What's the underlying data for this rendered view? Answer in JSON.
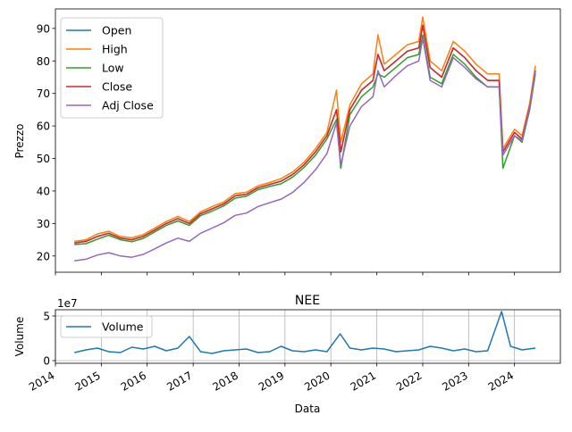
{
  "colors": {
    "Open": "#1f77b4",
    "High": "#ff7f0e",
    "Low": "#2ca02c",
    "Close": "#d62728",
    "Adj Close": "#9467bd",
    "Volume": "#1f77b4"
  },
  "chart_data": [
    {
      "type": "line",
      "title": "",
      "xlabel": "",
      "ylabel": "Prezzo",
      "xlim": [
        "2014-01-01",
        "2024-12-31"
      ],
      "ylim": [
        15,
        96
      ],
      "yticks": [
        20,
        30,
        40,
        50,
        60,
        70,
        80,
        90
      ],
      "grid": false,
      "legend_position": "top-left",
      "x": [
        "2014-06-01",
        "2014-09-01",
        "2014-12-01",
        "2015-03-01",
        "2015-06-01",
        "2015-09-01",
        "2015-12-01",
        "2016-03-01",
        "2016-06-01",
        "2016-09-01",
        "2016-12-01",
        "2017-03-01",
        "2017-06-01",
        "2017-09-01",
        "2017-12-01",
        "2018-03-01",
        "2018-06-01",
        "2018-09-01",
        "2018-12-01",
        "2019-03-01",
        "2019-06-01",
        "2019-09-01",
        "2019-12-01",
        "2020-02-15",
        "2020-03-20",
        "2020-06-01",
        "2020-09-01",
        "2020-12-01",
        "2021-01-10",
        "2021-03-01",
        "2021-06-01",
        "2021-09-01",
        "2021-12-01",
        "2022-01-01",
        "2022-03-01",
        "2022-06-01",
        "2022-09-01",
        "2022-12-01",
        "2023-03-01",
        "2023-06-01",
        "2023-09-01",
        "2023-10-01",
        "2024-01-01",
        "2024-03-01",
        "2024-05-01",
        "2024-06-15"
      ],
      "series": [
        {
          "name": "Open",
          "values": [
            24,
            24.5,
            26,
            27,
            25.5,
            25,
            26,
            28,
            30,
            31.5,
            30,
            33,
            34.5,
            36,
            38.5,
            39,
            41,
            42,
            43,
            45,
            48,
            52,
            57,
            65,
            52,
            65,
            71,
            74,
            82,
            77,
            80,
            83,
            84,
            91,
            78,
            75,
            84,
            81,
            77,
            74,
            74,
            52,
            58,
            56,
            66,
            77
          ]
        },
        {
          "name": "High",
          "values": [
            24.5,
            25,
            26.8,
            27.6,
            26,
            25.6,
            26.6,
            28.6,
            30.6,
            32.2,
            30.6,
            33.6,
            35.2,
            36.6,
            39.2,
            39.6,
            41.6,
            42.6,
            43.8,
            45.8,
            48.8,
            53,
            58,
            71,
            55,
            66.5,
            73,
            76,
            88,
            79,
            82,
            85,
            86,
            93.5,
            80,
            77,
            86,
            83,
            79,
            76,
            76,
            53,
            59,
            57,
            67,
            78.5
          ]
        },
        {
          "name": "Low",
          "values": [
            23.5,
            23.8,
            25.2,
            26.4,
            25,
            24.4,
            25.4,
            27.4,
            29.4,
            30.8,
            29.4,
            32.4,
            33.8,
            35.4,
            37.8,
            38.4,
            40.4,
            41.4,
            42.2,
            44.2,
            47.2,
            51,
            56,
            62,
            47,
            63.5,
            69,
            72,
            76,
            75,
            78,
            81,
            82,
            88,
            75,
            73,
            82,
            79,
            75,
            72,
            72,
            47,
            57,
            55,
            65,
            76
          ]
        },
        {
          "name": "Close",
          "values": [
            24,
            24.5,
            26,
            27,
            25.5,
            25,
            26,
            28,
            30,
            31.5,
            30,
            33,
            34.5,
            36,
            38.5,
            39,
            41,
            42,
            43,
            45,
            48,
            52,
            57,
            65,
            52,
            65,
            71,
            74,
            82,
            77,
            80,
            83,
            84,
            91,
            78,
            75,
            84,
            81,
            77,
            74,
            74,
            52,
            58,
            56,
            66,
            77
          ]
        },
        {
          "name": "Adj Close",
          "values": [
            18.5,
            19,
            20.3,
            21,
            20,
            19.6,
            20.5,
            22.2,
            24,
            25.5,
            24.5,
            27,
            28.6,
            30.2,
            32.5,
            33.2,
            35.2,
            36.4,
            37.5,
            39.5,
            42.6,
            46.5,
            51.5,
            61,
            48,
            60,
            66,
            69,
            77,
            72,
            75.5,
            78.5,
            80,
            87,
            74,
            72,
            81,
            78,
            74.5,
            72,
            72,
            51,
            57,
            55.5,
            65.5,
            77
          ]
        }
      ]
    },
    {
      "type": "line",
      "title": "NEE",
      "xlabel": "Data",
      "ylabel": "Volume",
      "y_scale_label": "1e7",
      "ylim": [
        -0.3,
        5.7
      ],
      "yticks": [
        0,
        5
      ],
      "yticks_unit": "1e7",
      "grid": true,
      "legend_position": "top-left",
      "xtick_labels": [
        "2014",
        "2015",
        "2016",
        "2017",
        "2018",
        "2019",
        "2020",
        "2021",
        "2022",
        "2023",
        "2024"
      ],
      "xtick_dates": [
        "2014-01-01",
        "2015-01-01",
        "2016-01-01",
        "2017-01-01",
        "2018-01-01",
        "2019-01-01",
        "2020-01-01",
        "2021-01-01",
        "2022-01-01",
        "2023-01-01",
        "2024-01-01"
      ],
      "x": [
        "2014-06-01",
        "2014-09-01",
        "2014-12-01",
        "2015-03-01",
        "2015-06-01",
        "2015-09-01",
        "2015-12-01",
        "2016-03-01",
        "2016-06-01",
        "2016-09-01",
        "2016-12-01",
        "2017-03-01",
        "2017-06-01",
        "2017-09-01",
        "2017-12-01",
        "2018-03-01",
        "2018-06-01",
        "2018-09-01",
        "2018-12-01",
        "2019-03-01",
        "2019-06-01",
        "2019-09-01",
        "2019-12-01",
        "2020-03-15",
        "2020-06-01",
        "2020-09-01",
        "2020-12-01",
        "2021-03-01",
        "2021-06-01",
        "2021-09-01",
        "2021-12-01",
        "2022-03-01",
        "2022-06-01",
        "2022-09-01",
        "2022-12-01",
        "2023-03-01",
        "2023-06-01",
        "2023-09-20",
        "2023-12-01",
        "2024-03-01",
        "2024-06-15"
      ],
      "series": [
        {
          "name": "Volume",
          "values": [
            0.9,
            1.2,
            1.4,
            1.0,
            0.9,
            1.5,
            1.3,
            1.6,
            1.1,
            1.4,
            2.7,
            1.0,
            0.8,
            1.1,
            1.2,
            1.3,
            0.9,
            1.0,
            1.6,
            1.1,
            1.0,
            1.2,
            1.0,
            3.0,
            1.4,
            1.2,
            1.4,
            1.3,
            1.0,
            1.1,
            1.2,
            1.6,
            1.4,
            1.1,
            1.3,
            1.0,
            1.1,
            5.5,
            1.6,
            1.2,
            1.4
          ]
        }
      ]
    }
  ]
}
